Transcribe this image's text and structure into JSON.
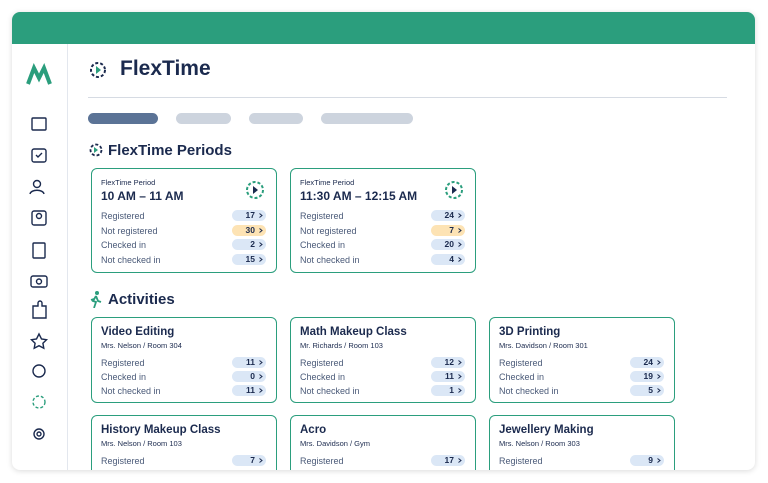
{
  "header": {
    "title": "FlexTime"
  },
  "periods": {
    "title": "FlexTime Periods",
    "items": [
      {
        "label": "FlexTime Period",
        "time": "10 AM – 11 AM",
        "rows": [
          {
            "label": "Registered",
            "value": 17
          },
          {
            "label": "Not registered",
            "value": 30
          },
          {
            "label": "Checked in",
            "value": 2
          },
          {
            "label": "Not checked in",
            "value": 15
          }
        ]
      },
      {
        "label": "FlexTime Period",
        "time": "11:30 AM – 12:15 AM",
        "rows": [
          {
            "label": "Registered",
            "value": 24
          },
          {
            "label": "Not registered",
            "value": 7
          },
          {
            "label": "Checked in",
            "value": 20
          },
          {
            "label": "Not checked in",
            "value": 4
          }
        ]
      }
    ]
  },
  "activities": {
    "title": "Activities",
    "items": [
      {
        "name": "Video Editing",
        "teacher": "Mrs. Nelson / Room 304",
        "rows": [
          {
            "label": "Registered",
            "value": 11
          },
          {
            "label": "Checked in",
            "value": 0
          },
          {
            "label": "Not checked in",
            "value": 11
          }
        ]
      },
      {
        "name": "Math Makeup Class",
        "teacher": "Mr. Richards / Room 103",
        "rows": [
          {
            "label": "Registered",
            "value": 12
          },
          {
            "label": "Checked in",
            "value": 11
          },
          {
            "label": "Not checked in",
            "value": 1
          }
        ]
      },
      {
        "name": "3D Printing",
        "teacher": "Mrs. Davidson / Room 301",
        "rows": [
          {
            "label": "Registered",
            "value": 24
          },
          {
            "label": "Checked in",
            "value": 19
          },
          {
            "label": "Not checked in",
            "value": 5
          }
        ]
      },
      {
        "name": "History Makeup Class",
        "teacher": "Mrs. Nelson / Room 103",
        "rows": [
          {
            "label": "Registered",
            "value": 7
          }
        ]
      },
      {
        "name": "Acro",
        "teacher": "Mrs. Davidson / Gym",
        "rows": [
          {
            "label": "Registered",
            "value": 17
          }
        ]
      },
      {
        "name": "Jewellery Making",
        "teacher": "Mrs. Nelson / Room 303",
        "rows": [
          {
            "label": "Registered",
            "value": 9
          }
        ]
      }
    ]
  }
}
